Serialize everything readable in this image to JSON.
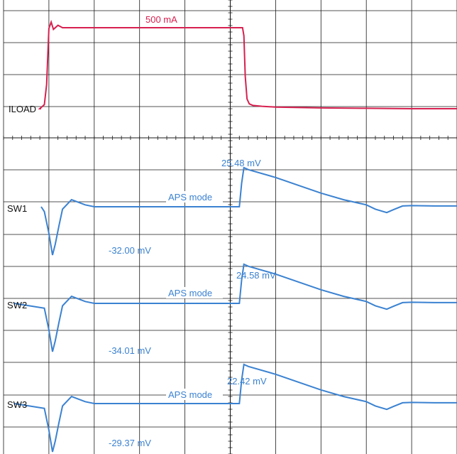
{
  "colors": {
    "grid": "#1a1a1a",
    "load": "#d6204f",
    "switch": "#3b82d1",
    "background": "#ffffff"
  },
  "chart_data": {
    "type": "line",
    "grid": true,
    "x_divisions": 10,
    "y_divisions": 14,
    "traces": [
      {
        "label": "ILOAD",
        "color_key": "load",
        "annotation_top": "500 mA",
        "x": [
          0,
          0.8,
          0.9,
          0.95,
          1.0,
          1.05,
          1.1,
          1.2,
          1.3,
          1.35,
          1.42,
          1.5,
          2.0,
          3.0,
          4.0,
          5.0,
          5.2,
          5.27,
          5.3,
          5.33,
          5.37,
          5.42,
          5.5,
          5.7,
          6.0,
          7.0,
          8.0,
          9.0,
          10.0
        ],
        "y": [
          0,
          0,
          0.05,
          0.3,
          0.99,
          1.07,
          0.98,
          1.03,
          1.0,
          1.0,
          1.0,
          1.0,
          1.0,
          1.0,
          1.0,
          1.0,
          1.0,
          1.0,
          0.9,
          0.4,
          0.12,
          0.06,
          0.04,
          0.03,
          0.02,
          0.01,
          0.005,
          0.0,
          0.0
        ]
      },
      {
        "label": "SW1",
        "color_key": "switch",
        "mode_label": "APS mode",
        "peak_label": "25.48 mV",
        "trough_label": "-32.00 mV",
        "x": [
          0,
          0.9,
          1.0,
          1.08,
          1.14,
          1.22,
          1.3,
          1.5,
          1.8,
          2.0,
          3.0,
          4.0,
          5.0,
          5.2,
          5.25,
          5.3,
          5.4,
          6.0,
          6.5,
          7.0,
          7.5,
          8.0,
          8.2,
          8.45,
          8.6,
          8.8,
          9.0,
          9.5,
          10.0
        ],
        "y": [
          0,
          -0.1,
          -0.55,
          -1.0,
          -0.78,
          -0.4,
          -0.05,
          0.18,
          0.05,
          0,
          0,
          0,
          0,
          0,
          0.6,
          1.0,
          0.95,
          0.75,
          0.55,
          0.35,
          0.18,
          0.05,
          -0.05,
          -0.12,
          -0.06,
          0.02,
          0.03,
          0.02,
          0.02
        ]
      },
      {
        "label": "SW2",
        "color_key": "switch",
        "mode_label": "APS mode",
        "peak_label": "24.58 mV",
        "trough_label": "-34.01 mV",
        "x": [
          0,
          0.9,
          1.0,
          1.08,
          1.14,
          1.22,
          1.3,
          1.5,
          1.8,
          2.0,
          3.0,
          4.0,
          5.0,
          5.2,
          5.25,
          5.3,
          5.4,
          6.0,
          6.5,
          7.0,
          7.5,
          8.0,
          8.2,
          8.45,
          8.6,
          8.8,
          9.0,
          9.5,
          10.0
        ],
        "y": [
          0,
          -0.1,
          -0.55,
          -1.0,
          -0.78,
          -0.4,
          -0.05,
          0.18,
          0.05,
          0,
          0,
          0,
          0,
          0,
          0.6,
          1.0,
          0.95,
          0.75,
          0.55,
          0.35,
          0.18,
          0.05,
          -0.05,
          -0.12,
          -0.06,
          0.02,
          0.03,
          0.02,
          0.02
        ]
      },
      {
        "label": "SW3",
        "color_key": "switch",
        "mode_label": "APS mode",
        "peak_label": "22.42 mV",
        "trough_label": "-29.37 mV",
        "x": [
          0,
          0.9,
          1.0,
          1.08,
          1.14,
          1.22,
          1.3,
          1.5,
          1.8,
          2.0,
          3.0,
          4.0,
          5.0,
          5.2,
          5.25,
          5.3,
          5.4,
          6.0,
          6.5,
          7.0,
          7.5,
          8.0,
          8.2,
          8.45,
          8.6,
          8.8,
          9.0,
          9.5,
          10.0
        ],
        "y": [
          0,
          -0.1,
          -0.55,
          -1.0,
          -0.78,
          -0.4,
          -0.05,
          0.18,
          0.05,
          0,
          0,
          0,
          0,
          0,
          0.6,
          1.0,
          0.95,
          0.75,
          0.55,
          0.35,
          0.18,
          0.05,
          -0.05,
          -0.12,
          -0.06,
          0.02,
          0.03,
          0.02,
          0.02
        ]
      }
    ]
  }
}
